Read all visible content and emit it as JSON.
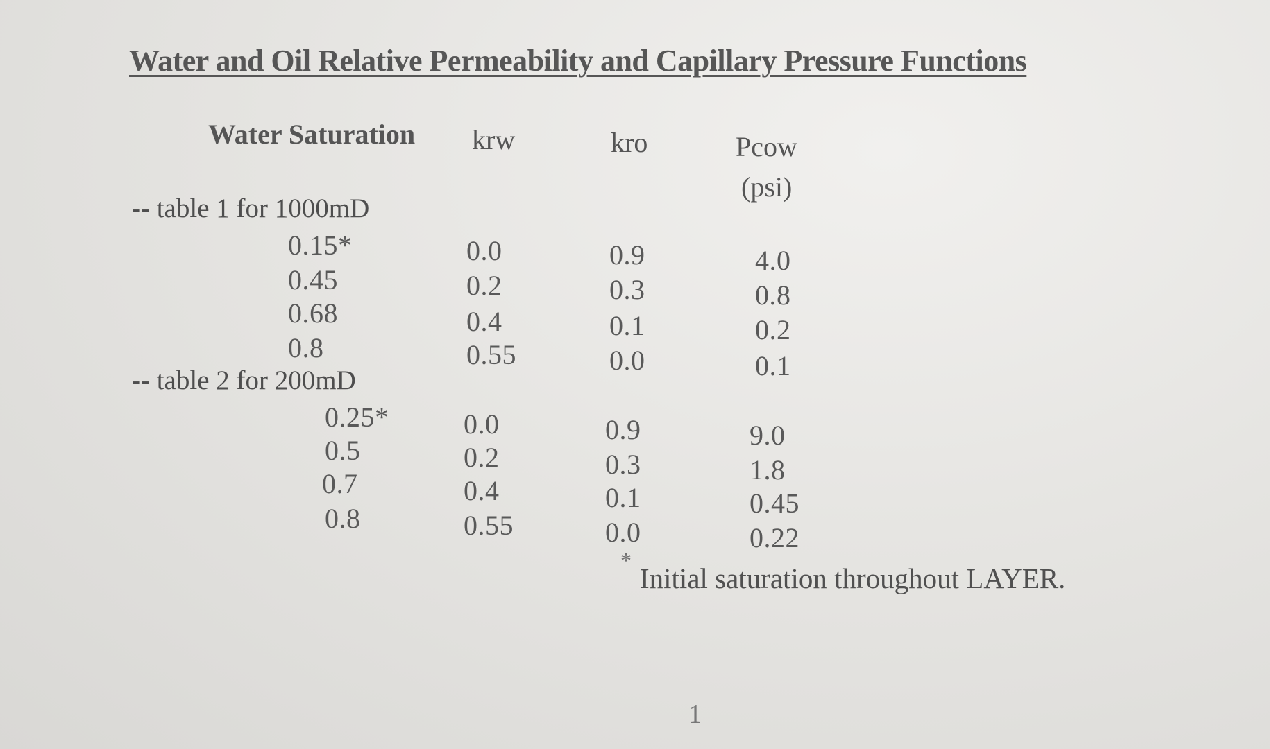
{
  "title": "Water and Oil Relative Permeability and Capillary Pressure Functions",
  "headers": {
    "sw": "Water Saturation",
    "krw": "krw",
    "kro": "kro",
    "pcow": "Pcow",
    "pcow_unit": "(psi)"
  },
  "tables": [
    {
      "label": "-- table 1 for 1000mD",
      "rows": [
        {
          "sw": "0.15*",
          "krw": "0.0",
          "kro": "0.9",
          "pcow": "4.0"
        },
        {
          "sw": "0.45",
          "krw": "0.2",
          "kro": "0.3",
          "pcow": "0.8"
        },
        {
          "sw": "0.68",
          "krw": "0.4",
          "kro": "0.1",
          "pcow": "0.2"
        },
        {
          "sw": "0.8",
          "krw": "0.55",
          "kro": "0.0",
          "pcow": "0.1"
        }
      ]
    },
    {
      "label": "-- table 2 for 200mD",
      "rows": [
        {
          "sw": "0.25*",
          "krw": "0.0",
          "kro": "0.9",
          "pcow": "9.0"
        },
        {
          "sw": "0.5",
          "krw": "0.2",
          "kro": "0.3",
          "pcow": "1.8"
        },
        {
          "sw": "0.7",
          "krw": "0.4",
          "kro": "0.1",
          "pcow": "0.45"
        },
        {
          "sw": "0.8",
          "krw": "0.55",
          "kro": "0.0",
          "pcow": "0.22"
        }
      ]
    }
  ],
  "footnote_mark": "*",
  "footnote": "Initial saturation throughout LAYER.",
  "page_number": "1"
}
